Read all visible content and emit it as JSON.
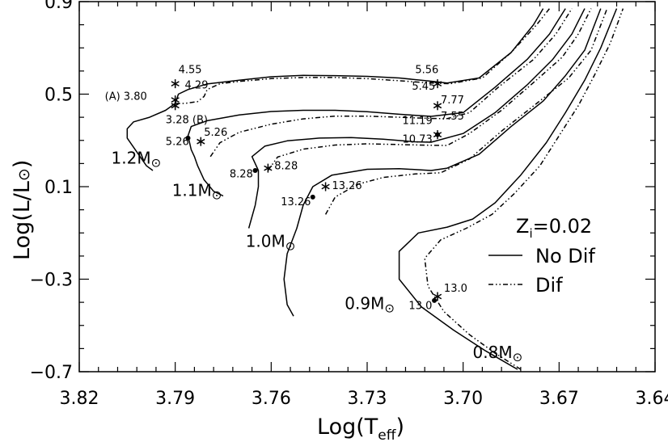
{
  "chart_data": {
    "type": "line",
    "xlabel": "Log(T",
    "xlabel_sub": "eff",
    "xlabel_close": ")",
    "ylabel": "Log(L/L",
    "ylabel_sun": "⊙",
    "ylabel_close": ")",
    "xlim": [
      3.82,
      3.64
    ],
    "ylim": [
      -0.7,
      0.9
    ],
    "x_ticks": [
      "3.82",
      "3.79",
      "3.76",
      "3.73",
      "3.70",
      "3.67",
      "3.64"
    ],
    "y_ticks": [
      "0.9",
      "0.5",
      "0.1",
      "−0.3",
      "−0.7"
    ],
    "legend": {
      "title_main": "Z",
      "title_sub": "i",
      "title_rest": "=0.02",
      "items": [
        {
          "label": "No Dif",
          "style": "solid"
        },
        {
          "label": "Dif",
          "style": "dash-dot-dot"
        }
      ],
      "placement": "right"
    },
    "series": [
      {
        "mass": "1.2M",
        "style": "solid",
        "points": [
          [
            3.797,
            0.17
          ],
          [
            3.799,
            0.19
          ],
          [
            3.801,
            0.23
          ],
          [
            3.803,
            0.27
          ],
          [
            3.805,
            0.31
          ],
          [
            3.805,
            0.35
          ],
          [
            3.803,
            0.38
          ],
          [
            3.798,
            0.4
          ],
          [
            3.793,
            0.43
          ],
          [
            3.79,
            0.46
          ],
          [
            3.789,
            0.5
          ],
          [
            3.786,
            0.52
          ],
          [
            3.78,
            0.544
          ],
          [
            3.77,
            0.56
          ],
          [
            3.76,
            0.575
          ],
          [
            3.75,
            0.581
          ],
          [
            3.74,
            0.58
          ],
          [
            3.73,
            0.577
          ],
          [
            3.72,
            0.57
          ],
          [
            3.71,
            0.556
          ],
          [
            3.705,
            0.548
          ],
          [
            3.695,
            0.57
          ],
          [
            3.685,
            0.68
          ],
          [
            3.678,
            0.8
          ],
          [
            3.675,
            0.87
          ]
        ]
      },
      {
        "mass": "1.2M",
        "style": "dash-dot-dot",
        "points": [
          [
            3.79,
            0.46
          ],
          [
            3.787,
            0.46
          ],
          [
            3.783,
            0.468
          ],
          [
            3.781,
            0.49
          ],
          [
            3.78,
            0.52
          ],
          [
            3.776,
            0.545
          ],
          [
            3.77,
            0.555
          ],
          [
            3.76,
            0.567
          ],
          [
            3.75,
            0.572
          ],
          [
            3.74,
            0.572
          ],
          [
            3.73,
            0.567
          ],
          [
            3.72,
            0.558
          ],
          [
            3.71,
            0.548
          ],
          [
            3.704,
            0.545
          ],
          [
            3.694,
            0.57
          ],
          [
            3.685,
            0.68
          ],
          [
            3.677,
            0.8
          ],
          [
            3.673,
            0.87
          ]
        ]
      },
      {
        "mass": "1.1M",
        "style": "solid",
        "points": [
          [
            3.775,
            0.06
          ],
          [
            3.778,
            0.08
          ],
          [
            3.781,
            0.13
          ],
          [
            3.783,
            0.19
          ],
          [
            3.784,
            0.23
          ],
          [
            3.785,
            0.26
          ],
          [
            3.786,
            0.32
          ],
          [
            3.785,
            0.36
          ],
          [
            3.78,
            0.385
          ],
          [
            3.77,
            0.41
          ],
          [
            3.76,
            0.425
          ],
          [
            3.75,
            0.43
          ],
          [
            3.74,
            0.43
          ],
          [
            3.73,
            0.424
          ],
          [
            3.72,
            0.413
          ],
          [
            3.71,
            0.404
          ],
          [
            3.7,
            0.42
          ],
          [
            3.69,
            0.53
          ],
          [
            3.68,
            0.65
          ],
          [
            3.673,
            0.76
          ],
          [
            3.668,
            0.87
          ]
        ]
      },
      {
        "mass": "1.1M",
        "style": "dash-dot-dot",
        "points": [
          [
            3.779,
            0.23
          ],
          [
            3.776,
            0.29
          ],
          [
            3.77,
            0.335
          ],
          [
            3.76,
            0.37
          ],
          [
            3.75,
            0.393
          ],
          [
            3.74,
            0.405
          ],
          [
            3.73,
            0.405
          ],
          [
            3.72,
            0.4
          ],
          [
            3.71,
            0.395
          ],
          [
            3.705,
            0.394
          ],
          [
            3.698,
            0.42
          ],
          [
            3.689,
            0.53
          ],
          [
            3.678,
            0.65
          ],
          [
            3.671,
            0.76
          ],
          [
            3.666,
            0.87
          ]
        ]
      },
      {
        "mass": "1.0M",
        "style": "solid",
        "points": [
          [
            3.767,
            -0.08
          ],
          [
            3.765,
            0.02
          ],
          [
            3.764,
            0.1
          ],
          [
            3.764,
            0.17
          ],
          [
            3.766,
            0.23
          ],
          [
            3.762,
            0.275
          ],
          [
            3.755,
            0.298
          ],
          [
            3.745,
            0.31
          ],
          [
            3.735,
            0.312
          ],
          [
            3.725,
            0.305
          ],
          [
            3.715,
            0.294
          ],
          [
            3.71,
            0.292
          ],
          [
            3.7,
            0.33
          ],
          [
            3.69,
            0.42
          ],
          [
            3.68,
            0.54
          ],
          [
            3.672,
            0.65
          ],
          [
            3.666,
            0.76
          ],
          [
            3.662,
            0.87
          ]
        ]
      },
      {
        "mass": "1.0M",
        "style": "dash-dot-dot",
        "points": [
          [
            3.761,
            0.17
          ],
          [
            3.758,
            0.228
          ],
          [
            3.75,
            0.262
          ],
          [
            3.74,
            0.28
          ],
          [
            3.73,
            0.285
          ],
          [
            3.72,
            0.282
          ],
          [
            3.71,
            0.279
          ],
          [
            3.705,
            0.278
          ],
          [
            3.698,
            0.33
          ],
          [
            3.688,
            0.43
          ],
          [
            3.678,
            0.55
          ],
          [
            3.669,
            0.66
          ],
          [
            3.664,
            0.76
          ],
          [
            3.66,
            0.87
          ]
        ]
      },
      {
        "mass": "0.9M",
        "style": "solid",
        "points": [
          [
            3.753,
            -0.46
          ],
          [
            3.755,
            -0.41
          ],
          [
            3.756,
            -0.3
          ],
          [
            3.755,
            -0.19
          ],
          [
            3.752,
            -0.08
          ],
          [
            3.75,
            0.02
          ],
          [
            3.747,
            0.1
          ],
          [
            3.741,
            0.15
          ],
          [
            3.73,
            0.175
          ],
          [
            3.72,
            0.178
          ],
          [
            3.71,
            0.17
          ],
          [
            3.705,
            0.18
          ],
          [
            3.695,
            0.24
          ],
          [
            3.685,
            0.36
          ],
          [
            3.675,
            0.47
          ],
          [
            3.668,
            0.58
          ],
          [
            3.662,
            0.69
          ],
          [
            3.657,
            0.87
          ]
        ]
      },
      {
        "mass": "0.9M",
        "style": "dash-dot-dot",
        "points": [
          [
            3.743,
            -0.02
          ],
          [
            3.74,
            0.055
          ],
          [
            3.733,
            0.11
          ],
          [
            3.725,
            0.14
          ],
          [
            3.715,
            0.155
          ],
          [
            3.707,
            0.16
          ],
          [
            3.698,
            0.22
          ],
          [
            3.688,
            0.34
          ],
          [
            3.677,
            0.46
          ],
          [
            3.667,
            0.57
          ],
          [
            3.66,
            0.69
          ],
          [
            3.655,
            0.87
          ]
        ]
      },
      {
        "mass": "0.8M",
        "style": "solid",
        "points": [
          [
            3.683,
            -0.69
          ],
          [
            3.693,
            -0.61
          ],
          [
            3.703,
            -0.52
          ],
          [
            3.713,
            -0.42
          ],
          [
            3.72,
            -0.3
          ],
          [
            3.72,
            -0.18
          ],
          [
            3.714,
            -0.1
          ],
          [
            3.705,
            -0.075
          ],
          [
            3.697,
            -0.04
          ],
          [
            3.69,
            0.03
          ],
          [
            3.682,
            0.15
          ],
          [
            3.674,
            0.29
          ],
          [
            3.668,
            0.42
          ],
          [
            3.662,
            0.56
          ],
          [
            3.657,
            0.7
          ],
          [
            3.652,
            0.87
          ]
        ]
      },
      {
        "mass": "0.8M",
        "style": "dash-dot-dot",
        "points": [
          [
            3.682,
            -0.69
          ],
          [
            3.69,
            -0.62
          ],
          [
            3.698,
            -0.54
          ],
          [
            3.706,
            -0.44
          ],
          [
            3.711,
            -0.33
          ],
          [
            3.712,
            -0.21
          ],
          [
            3.707,
            -0.13
          ],
          [
            3.699,
            -0.08
          ],
          [
            3.691,
            -0.02
          ],
          [
            3.684,
            0.07
          ],
          [
            3.676,
            0.19
          ],
          [
            3.67,
            0.32
          ],
          [
            3.664,
            0.45
          ],
          [
            3.659,
            0.58
          ],
          [
            3.654,
            0.72
          ],
          [
            3.65,
            0.87
          ]
        ]
      }
    ],
    "mass_labels": [
      {
        "text": "1.2M",
        "sym": "⊙",
        "x": 3.81,
        "y": 0.2
      },
      {
        "text": "1.1M",
        "sym": "⊙",
        "x": 3.791,
        "y": 0.06
      },
      {
        "text": "1.0M",
        "sym": "⊙",
        "x": 3.768,
        "y": -0.16
      },
      {
        "text": "0.9M",
        "sym": "⊙",
        "x": 3.737,
        "y": -0.43
      },
      {
        "text": "0.8M",
        "sym": "⊙",
        "x": 3.697,
        "y": -0.64
      }
    ],
    "markers": [
      {
        "kind": "star",
        "x": 3.79,
        "y": 0.545
      },
      {
        "kind": "star",
        "x": 3.79,
        "y": 0.475
      },
      {
        "kind": "star",
        "x": 3.79,
        "y": 0.45
      },
      {
        "kind": "star",
        "x": 3.782,
        "y": 0.295
      },
      {
        "kind": "dot",
        "x": 3.786,
        "y": 0.31
      },
      {
        "kind": "star",
        "x": 3.761,
        "y": 0.18
      },
      {
        "kind": "dot",
        "x": 3.765,
        "y": 0.17
      },
      {
        "kind": "star",
        "x": 3.743,
        "y": 0.1
      },
      {
        "kind": "dot",
        "x": 3.747,
        "y": 0.055
      },
      {
        "kind": "star",
        "x": 3.708,
        "y": 0.545
      },
      {
        "kind": "star",
        "x": 3.708,
        "y": 0.45
      },
      {
        "kind": "star",
        "x": 3.708,
        "y": 0.325
      },
      {
        "kind": "dot",
        "x": 3.708,
        "y": 0.325
      },
      {
        "kind": "star",
        "x": 3.708,
        "y": -0.375
      },
      {
        "kind": "dot",
        "x": 3.709,
        "y": -0.392
      }
    ],
    "annotations": [
      {
        "text": "4.55",
        "x": 3.789,
        "y": 0.59
      },
      {
        "text": "4.29",
        "x": 3.787,
        "y": 0.525
      },
      {
        "text": "(A) 3.80",
        "x": 3.812,
        "y": 0.475
      },
      {
        "text": "3.28 (B)",
        "x": 3.793,
        "y": 0.375
      },
      {
        "text": "5.26",
        "x": 3.781,
        "y": 0.32
      },
      {
        "text": "5.26",
        "x": 3.793,
        "y": 0.28
      },
      {
        "text": "8.28",
        "x": 3.773,
        "y": 0.14
      },
      {
        "text": "8.28",
        "x": 3.759,
        "y": 0.175
      },
      {
        "text": "13.26",
        "x": 3.757,
        "y": 0.02
      },
      {
        "text": "13.26",
        "x": 3.741,
        "y": 0.09
      },
      {
        "text": "5.56",
        "x": 3.715,
        "y": 0.59
      },
      {
        "text": "5.45",
        "x": 3.716,
        "y": 0.52
      },
      {
        "text": "7.77",
        "x": 3.707,
        "y": 0.46
      },
      {
        "text": "11.19",
        "x": 3.719,
        "y": 0.37
      },
      {
        "text": "7.55",
        "x": 3.707,
        "y": 0.39
      },
      {
        "text": "10.73",
        "x": 3.719,
        "y": 0.29
      },
      {
        "text": "13.0",
        "x": 3.706,
        "y": -0.355
      },
      {
        "text": "13.0",
        "x": 3.717,
        "y": -0.43
      }
    ]
  }
}
